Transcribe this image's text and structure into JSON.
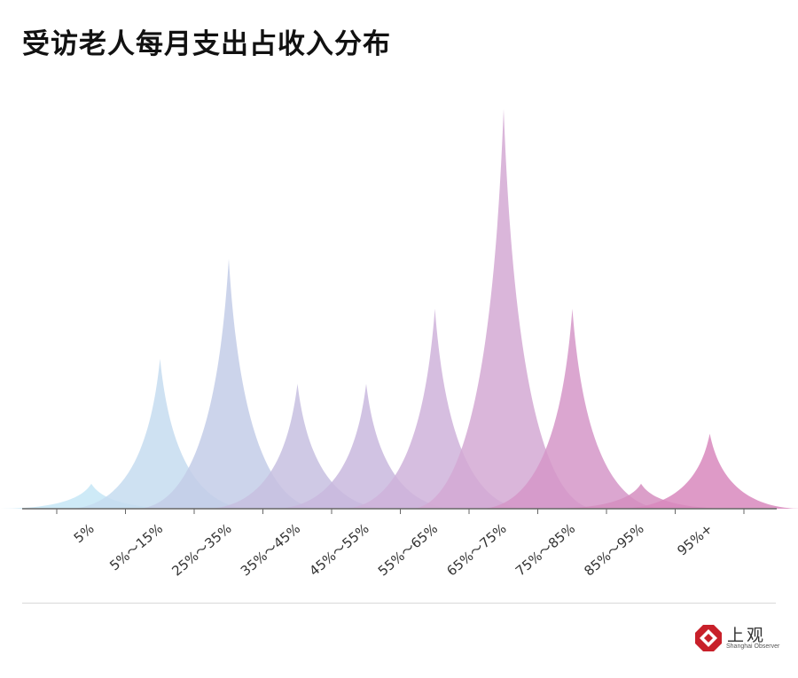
{
  "title": "受访老人每月支出占收入分布",
  "brand": {
    "name_cn": "上观",
    "name_en": "Shanghai Observer"
  },
  "chart_data": {
    "type": "area",
    "title": "受访老人每月支出占收入分布",
    "categories": [
      "5%",
      "5%～15%",
      "25%～35%",
      "35%～45%",
      "45%～55%",
      "55%～65%",
      "65%～75%",
      "75%～85%",
      "85%～95%",
      "95%+"
    ],
    "values": [
      3,
      18,
      30,
      15,
      15,
      24,
      48,
      24,
      3,
      9
    ],
    "ylim": [
      0,
      50
    ],
    "grid": false,
    "legend": "none",
    "colors": [
      "#c6e6f6",
      "#c5dcf0",
      "#c3cde8",
      "#c7bfe0",
      "#c9b8de",
      "#cfb3da",
      "#d3a9d4",
      "#d597c8",
      "#d58ec0",
      "#d888bd"
    ]
  }
}
